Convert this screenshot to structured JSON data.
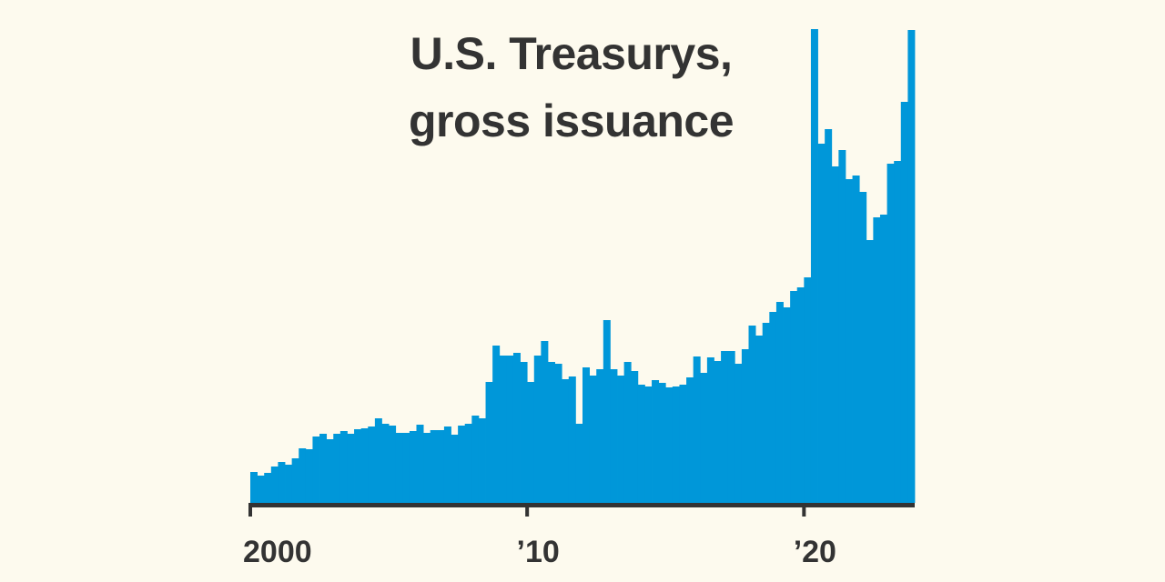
{
  "chart_data": {
    "type": "bar",
    "title": "U.S. Treasurys, gross issuance",
    "title_lines": [
      "U.S. Treasurys,",
      "gross issuance"
    ],
    "xlabel": "",
    "ylabel": "",
    "x_start": "2000 Q1",
    "x_end": "2023 Q4",
    "frequency": "quarterly",
    "x_ticks": [
      {
        "year": 2000,
        "label": "2000"
      },
      {
        "year": 2010,
        "label": "’10"
      },
      {
        "year": 2020,
        "label": "’20"
      }
    ],
    "values_note_units": "relative (no y-axis printed)",
    "values": [
      34,
      30,
      33,
      40,
      45,
      42,
      49,
      60,
      59,
      73,
      76,
      70,
      76,
      79,
      76,
      81,
      82,
      84,
      93,
      87,
      85,
      77,
      77,
      79,
      86,
      77,
      80,
      80,
      84,
      75,
      85,
      87,
      96,
      93,
      133,
      173,
      162,
      162,
      165,
      155,
      133,
      162,
      178,
      155,
      153,
      136,
      139,
      87,
      149,
      140,
      147,
      201,
      147,
      140,
      155,
      145,
      130,
      128,
      135,
      132,
      127,
      128,
      130,
      138,
      161,
      143,
      160,
      156,
      167,
      167,
      153,
      169,
      195,
      184,
      198,
      210,
      221,
      215,
      233,
      237,
      248,
      521,
      395,
      411,
      370,
      388,
      356,
      360,
      342,
      289,
      314,
      317,
      373,
      376,
      441,
      520
    ],
    "ylim": [
      0,
      521
    ],
    "grid": false,
    "legend": "none",
    "colors": {
      "bar": "#0097d9",
      "axis": "#333333",
      "background": "#fdfaee",
      "text": "#333333"
    }
  }
}
